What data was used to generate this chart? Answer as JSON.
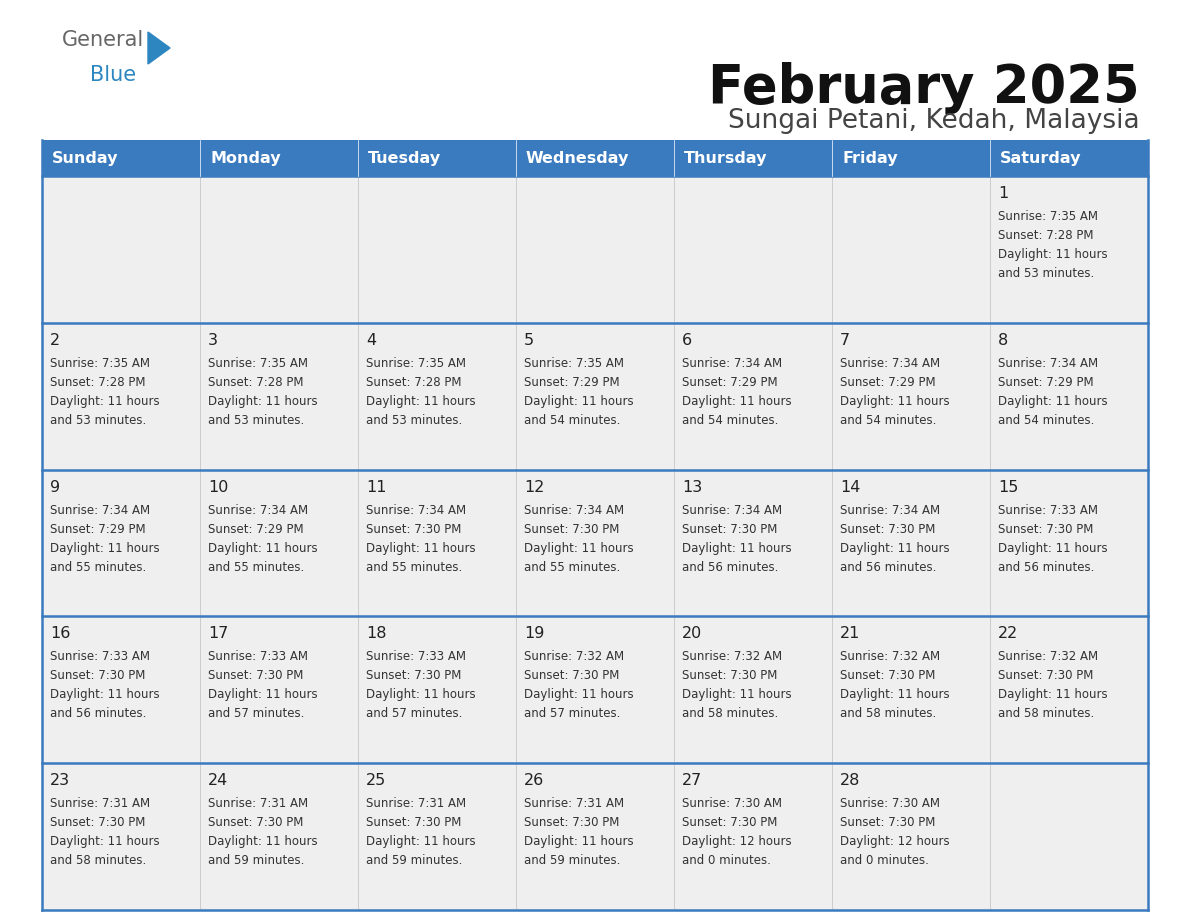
{
  "title": "February 2025",
  "subtitle": "Sungai Petani, Kedah, Malaysia",
  "days_of_week": [
    "Sunday",
    "Monday",
    "Tuesday",
    "Wednesday",
    "Thursday",
    "Friday",
    "Saturday"
  ],
  "header_bg": "#3a7abf",
  "header_text": "#ffffff",
  "row_bg": "#efefef",
  "cell_border_color": "#3a7abf",
  "cell_divider_color": "#cccccc",
  "day_number_color": "#222222",
  "info_text_color": "#333333",
  "title_color": "#111111",
  "subtitle_color": "#444444",
  "logo_gray": "#666666",
  "logo_blue": "#2e86c1",
  "calendar_data": [
    [
      null,
      null,
      null,
      null,
      null,
      null,
      {
        "day": 1,
        "sunrise": "7:35 AM",
        "sunset": "7:28 PM",
        "daylight": "11 hours and 53 minutes."
      }
    ],
    [
      {
        "day": 2,
        "sunrise": "7:35 AM",
        "sunset": "7:28 PM",
        "daylight": "11 hours and 53 minutes."
      },
      {
        "day": 3,
        "sunrise": "7:35 AM",
        "sunset": "7:28 PM",
        "daylight": "11 hours and 53 minutes."
      },
      {
        "day": 4,
        "sunrise": "7:35 AM",
        "sunset": "7:28 PM",
        "daylight": "11 hours and 53 minutes."
      },
      {
        "day": 5,
        "sunrise": "7:35 AM",
        "sunset": "7:29 PM",
        "daylight": "11 hours and 54 minutes."
      },
      {
        "day": 6,
        "sunrise": "7:34 AM",
        "sunset": "7:29 PM",
        "daylight": "11 hours and 54 minutes."
      },
      {
        "day": 7,
        "sunrise": "7:34 AM",
        "sunset": "7:29 PM",
        "daylight": "11 hours and 54 minutes."
      },
      {
        "day": 8,
        "sunrise": "7:34 AM",
        "sunset": "7:29 PM",
        "daylight": "11 hours and 54 minutes."
      }
    ],
    [
      {
        "day": 9,
        "sunrise": "7:34 AM",
        "sunset": "7:29 PM",
        "daylight": "11 hours and 55 minutes."
      },
      {
        "day": 10,
        "sunrise": "7:34 AM",
        "sunset": "7:29 PM",
        "daylight": "11 hours and 55 minutes."
      },
      {
        "day": 11,
        "sunrise": "7:34 AM",
        "sunset": "7:30 PM",
        "daylight": "11 hours and 55 minutes."
      },
      {
        "day": 12,
        "sunrise": "7:34 AM",
        "sunset": "7:30 PM",
        "daylight": "11 hours and 55 minutes."
      },
      {
        "day": 13,
        "sunrise": "7:34 AM",
        "sunset": "7:30 PM",
        "daylight": "11 hours and 56 minutes."
      },
      {
        "day": 14,
        "sunrise": "7:34 AM",
        "sunset": "7:30 PM",
        "daylight": "11 hours and 56 minutes."
      },
      {
        "day": 15,
        "sunrise": "7:33 AM",
        "sunset": "7:30 PM",
        "daylight": "11 hours and 56 minutes."
      }
    ],
    [
      {
        "day": 16,
        "sunrise": "7:33 AM",
        "sunset": "7:30 PM",
        "daylight": "11 hours and 56 minutes."
      },
      {
        "day": 17,
        "sunrise": "7:33 AM",
        "sunset": "7:30 PM",
        "daylight": "11 hours and 57 minutes."
      },
      {
        "day": 18,
        "sunrise": "7:33 AM",
        "sunset": "7:30 PM",
        "daylight": "11 hours and 57 minutes."
      },
      {
        "day": 19,
        "sunrise": "7:32 AM",
        "sunset": "7:30 PM",
        "daylight": "11 hours and 57 minutes."
      },
      {
        "day": 20,
        "sunrise": "7:32 AM",
        "sunset": "7:30 PM",
        "daylight": "11 hours and 58 minutes."
      },
      {
        "day": 21,
        "sunrise": "7:32 AM",
        "sunset": "7:30 PM",
        "daylight": "11 hours and 58 minutes."
      },
      {
        "day": 22,
        "sunrise": "7:32 AM",
        "sunset": "7:30 PM",
        "daylight": "11 hours and 58 minutes."
      }
    ],
    [
      {
        "day": 23,
        "sunrise": "7:31 AM",
        "sunset": "7:30 PM",
        "daylight": "11 hours and 58 minutes."
      },
      {
        "day": 24,
        "sunrise": "7:31 AM",
        "sunset": "7:30 PM",
        "daylight": "11 hours and 59 minutes."
      },
      {
        "day": 25,
        "sunrise": "7:31 AM",
        "sunset": "7:30 PM",
        "daylight": "11 hours and 59 minutes."
      },
      {
        "day": 26,
        "sunrise": "7:31 AM",
        "sunset": "7:30 PM",
        "daylight": "11 hours and 59 minutes."
      },
      {
        "day": 27,
        "sunrise": "7:30 AM",
        "sunset": "7:30 PM",
        "daylight": "12 hours and 0 minutes."
      },
      {
        "day": 28,
        "sunrise": "7:30 AM",
        "sunset": "7:30 PM",
        "daylight": "12 hours and 0 minutes."
      },
      null
    ]
  ]
}
